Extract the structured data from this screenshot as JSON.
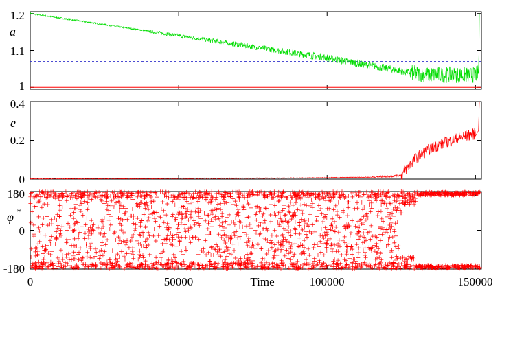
{
  "chart_data": [
    {
      "type": "line",
      "ylabel": "a",
      "xlim": [
        0,
        152000
      ],
      "ylim": [
        0.995,
        1.205
      ],
      "yticks": [
        "1.2",
        "1.1",
        "1"
      ],
      "reference_lines": [
        {
          "y": 1.07,
          "style": "dashed",
          "color": "#3333cc"
        },
        {
          "y": 1.0,
          "style": "solid",
          "color": "#ff0000"
        }
      ],
      "series": [
        {
          "color": "#00dd00",
          "style": "dashed",
          "x": [
            0,
            20000,
            40000,
            60000,
            80000,
            100000,
            110000,
            120000,
            126000,
            132000,
            140000,
            146000,
            150000,
            151000,
            151200,
            151300
          ],
          "y": [
            1.2,
            1.176,
            1.152,
            1.128,
            1.104,
            1.08,
            1.066,
            1.052,
            1.043,
            1.035,
            1.034,
            1.034,
            1.034,
            1.04,
            1.1,
            1.2
          ]
        }
      ]
    },
    {
      "type": "line",
      "ylabel": "e",
      "xlim": [
        0,
        152000
      ],
      "ylim": [
        0,
        0.4
      ],
      "yticks": [
        "0.4",
        "0.2",
        "0"
      ],
      "series": [
        {
          "color": "#ff0000",
          "style": "solid",
          "x": [
            0,
            40000,
            80000,
            100000,
            115000,
            122000,
            125000,
            127000,
            130000,
            135000,
            140000,
            145000,
            150000,
            151000,
            151300
          ],
          "y": [
            0.002,
            0.003,
            0.005,
            0.007,
            0.01,
            0.015,
            0.02,
            0.06,
            0.11,
            0.16,
            0.19,
            0.215,
            0.235,
            0.25,
            0.4
          ]
        }
      ]
    },
    {
      "type": "scatter",
      "ylabel": "φ",
      "ylabel_superscript": "*",
      "xlabel": "Time",
      "xlim": [
        0,
        152000
      ],
      "ylim": [
        -180,
        180
      ],
      "yticks": [
        "180",
        "0",
        "-180"
      ],
      "xticks": [
        "0",
        "50000",
        "100000",
        "150000"
      ],
      "xtick_values": [
        0,
        50000,
        100000,
        150000
      ],
      "series": [
        {
          "color": "#ff0000",
          "marker": "plus",
          "description_points": "uniform scatter -180..180 for t < 125000; clusters near +170 and -170 for t >= 128000"
        }
      ]
    }
  ]
}
